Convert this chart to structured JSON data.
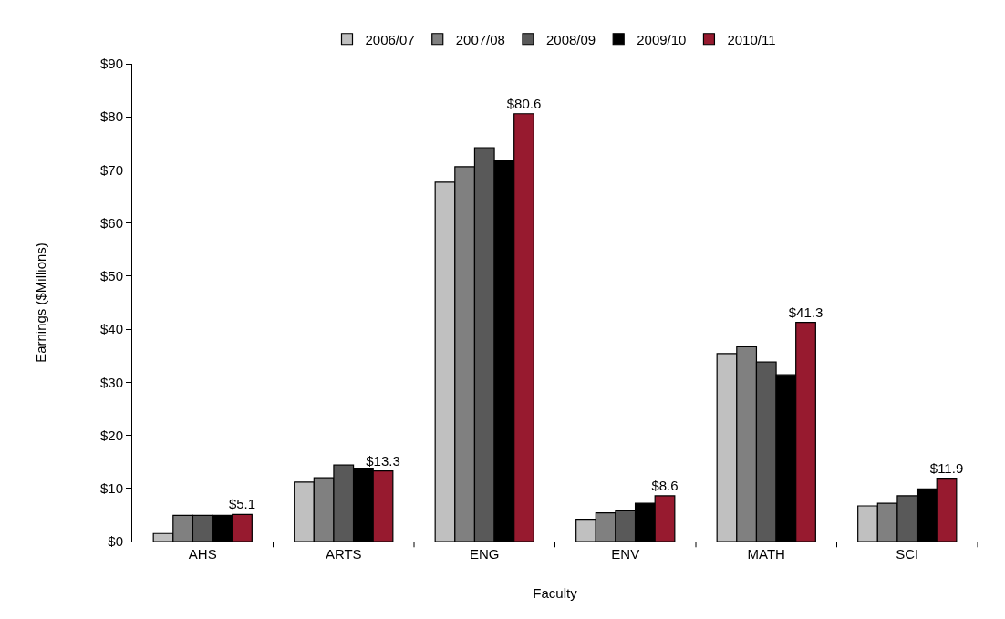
{
  "chart_data": {
    "type": "bar",
    "xlabel": "Faculty",
    "ylabel": "Earnings ($Millions)",
    "categories": [
      "AHS",
      "ARTS",
      "ENG",
      "ENV",
      "MATH",
      "SCI"
    ],
    "series": [
      {
        "name": "2006/07",
        "color": "#c0c0c0",
        "values": [
          1.5,
          11.2,
          67.7,
          4.2,
          35.4,
          6.7
        ]
      },
      {
        "name": "2007/08",
        "color": "#808080",
        "values": [
          4.9,
          12.0,
          70.6,
          5.4,
          36.7,
          7.2
        ]
      },
      {
        "name": "2008/09",
        "color": "#595959",
        "values": [
          4.9,
          14.4,
          74.2,
          5.9,
          33.8,
          8.6
        ]
      },
      {
        "name": "2009/10",
        "color": "#000000",
        "values": [
          4.9,
          13.8,
          71.7,
          7.2,
          31.4,
          9.9
        ]
      },
      {
        "name": "2010/11",
        "color": "#971a2f",
        "values": [
          5.1,
          13.3,
          80.6,
          8.6,
          41.3,
          11.9
        ],
        "value_labels": [
          "$5.1",
          "$13.3",
          "$80.6",
          "$8.6",
          "$41.3",
          "$11.9"
        ]
      }
    ],
    "ylim": [
      0,
      90
    ],
    "yticks": [
      {
        "value": 0,
        "label": "$0"
      },
      {
        "value": 10,
        "label": "$10"
      },
      {
        "value": 20,
        "label": "$20"
      },
      {
        "value": 30,
        "label": "$30"
      },
      {
        "value": 40,
        "label": "$40"
      },
      {
        "value": 50,
        "label": "$50"
      },
      {
        "value": 60,
        "label": "$60"
      },
      {
        "value": 70,
        "label": "$70"
      },
      {
        "value": 80,
        "label": "$80"
      },
      {
        "value": 90,
        "label": "$90"
      }
    ],
    "grid": false,
    "legend": "top"
  }
}
